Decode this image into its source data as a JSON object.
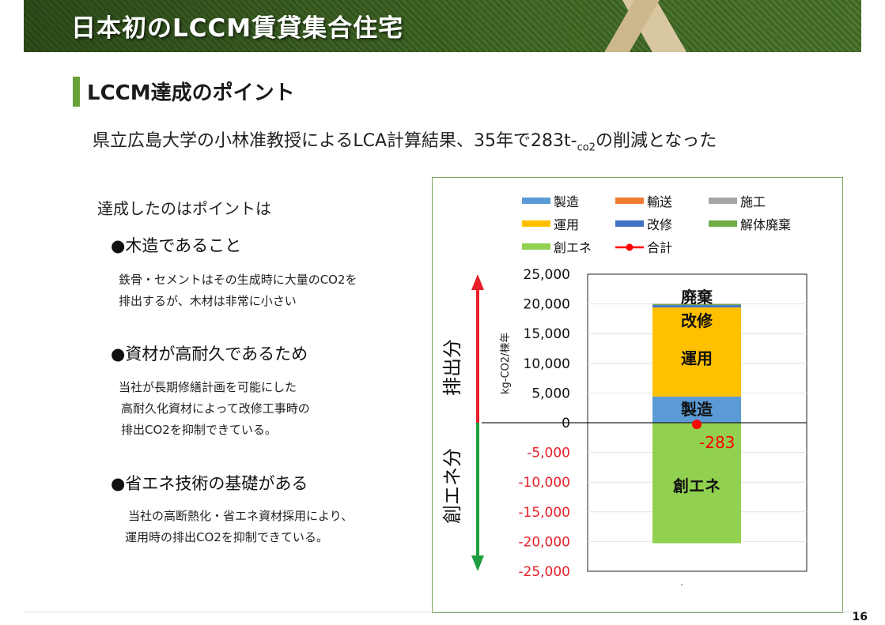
{
  "header": {
    "title": "日本初のLCCM賃貸集合住宅"
  },
  "section": {
    "title": "LCCM達成のポイント"
  },
  "subtitle": {
    "main": "県立広島大学の小林准教授によるLCA計算結果、35年で283t-",
    "unit": "co2",
    "tail": "の削減となった"
  },
  "lead": "達成したのはポイントは",
  "points": [
    {
      "title": "●木造であること",
      "lines": [
        "鉄骨・セメントはその生成時に大量のCO2を",
        "排出するが、木材は非常に小さい"
      ]
    },
    {
      "title": "●資材が高耐久であるため",
      "lines": [
        "当社が長期修繕計画を可能にした",
        "高耐久化資材によって改修工事時の",
        "排出CO2を抑制できている。"
      ]
    },
    {
      "title": "●省エネ技術の基礎がある",
      "lines": [
        "当社の高断熱化・省エネ資材採用により、",
        "運用時の排出CO2を抑制できている。"
      ]
    }
  ],
  "page_number": "16",
  "chart_data": {
    "type": "bar",
    "stacked": true,
    "categories": [
      ""
    ],
    "ylabel": "kg-CO2/棟年",
    "ylim": [
      -25000,
      25000
    ],
    "yticks": [
      25000,
      20000,
      15000,
      10000,
      5000,
      0,
      -5000,
      -10000,
      -15000,
      -20000,
      -25000
    ],
    "ytick_labels": [
      "25,000",
      "20,000",
      "15,000",
      "10,000",
      "5,000",
      "0",
      "-5,000",
      "-10,000",
      "-15,000",
      "-20,000",
      "-25,000"
    ],
    "grid": true,
    "legend_position": "top",
    "series": [
      {
        "name": "製造",
        "values": [
          4400
        ],
        "color": "#5b9bd5"
      },
      {
        "name": "輸送",
        "values": [
          0
        ],
        "color": "#ed7d31"
      },
      {
        "name": "施工",
        "values": [
          0
        ],
        "color": "#a5a5a5"
      },
      {
        "name": "運用",
        "values": [
          15000
        ],
        "color": "#ffc000"
      },
      {
        "name": "改修",
        "values": [
          400
        ],
        "color": "#4472c4"
      },
      {
        "name": "解体廃棄",
        "values": [
          200
        ],
        "color": "#70ad47"
      },
      {
        "name": "創エネ",
        "values": [
          -20283
        ],
        "color": "#92d050"
      }
    ],
    "total": {
      "name": "合計",
      "value": -283,
      "label": "-283",
      "color": "#ff0000"
    },
    "segment_labels": [
      "廃棄",
      "改修",
      "運用",
      "製造",
      "創エネ"
    ],
    "side_labels": {
      "up": "排出分",
      "down": "創エネ分"
    },
    "arrow_colors": {
      "up": "#e8202a",
      "down": "#1e9e3e"
    }
  }
}
